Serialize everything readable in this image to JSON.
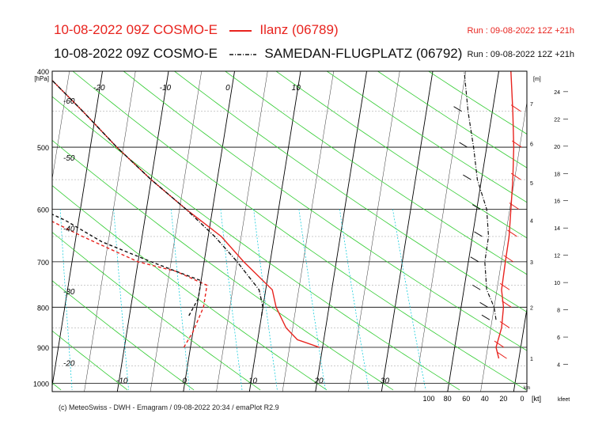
{
  "header": {
    "line1_text": "10-08-2022 09Z COSMO-E",
    "line1_station": "Ilanz (06789)",
    "line1_run": "Run : 09-08-2022 12Z +21h",
    "line2_text": "10-08-2022 09Z COSMO-E",
    "line2_station": "SAMEDAN-FLUGPLATZ (06792)",
    "line2_run": "Run : 09-08-2022 12Z +21h"
  },
  "footer": "(c) MeteoSwiss - DWH - Emagram / 09-08-2022  20:34 / emaPlot R2.9",
  "colors": {
    "ilanz": "#e8231e",
    "samedan": "#111111",
    "dry_adiabat": "#33cc33",
    "mixing_ratio": "#00c8d8"
  },
  "chart_data": {
    "type": "emagram",
    "y_axis": {
      "unit_label": "[hPa]",
      "ticks": [
        "400",
        "500",
        "600",
        "700",
        "800",
        "900",
        "1000"
      ],
      "range": [
        1025,
        400
      ],
      "scale": "log"
    },
    "temp_axis": {
      "ticks": [
        "-60",
        "-50",
        "-40",
        "-30",
        "-20",
        "-10",
        "0",
        "10",
        "20",
        "30"
      ],
      "range_at_1000hPa": [
        -60,
        40
      ]
    },
    "height_axis_m": {
      "label": "[m]",
      "ticks": [
        "1",
        "2",
        "3",
        "4",
        "5",
        "6",
        "7"
      ],
      "sub_label": "km"
    },
    "height_axis_kfeet": {
      "ticks": [
        "4",
        "6",
        "8",
        "10",
        "12",
        "14",
        "16",
        "18",
        "20",
        "22",
        "24"
      ],
      "label": "kfeet"
    },
    "wind_axis": {
      "ticks": [
        "100",
        "80",
        "60",
        "40",
        "20",
        "0"
      ],
      "unit": "[kt]"
    },
    "series": [
      {
        "name": "Ilanz (06789)",
        "temperature": [
          [
            900,
            19.5
          ],
          [
            880,
            16
          ],
          [
            850,
            14
          ],
          [
            800,
            12
          ],
          [
            760,
            11
          ],
          [
            700,
            6
          ],
          [
            650,
            2
          ],
          [
            600,
            -4
          ],
          [
            550,
            -10
          ],
          [
            500,
            -16
          ],
          [
            450,
            -22
          ],
          [
            400,
            -29
          ]
        ],
        "dewpoint": [
          [
            900,
            -1
          ],
          [
            860,
            0
          ],
          [
            800,
            1
          ],
          [
            750,
            1
          ],
          [
            720,
            -4
          ],
          [
            700,
            -10
          ],
          [
            650,
            -19
          ],
          [
            600,
            -28
          ],
          [
            560,
            -36
          ],
          [
            520,
            -37
          ],
          [
            480,
            -34
          ],
          [
            440,
            -32
          ],
          [
            400,
            -33
          ]
        ]
      },
      {
        "name": "SAMEDAN-FLUGPLATZ (06792)",
        "temperature": [
          [
            820,
            10
          ],
          [
            800,
            10
          ],
          [
            760,
            9
          ],
          [
            700,
            5
          ],
          [
            650,
            1
          ],
          [
            600,
            -4
          ],
          [
            550,
            -10
          ],
          [
            500,
            -16
          ],
          [
            450,
            -22
          ],
          [
            400,
            -29
          ]
        ],
        "dewpoint": [
          [
            820,
            -1
          ],
          [
            780,
            0
          ],
          [
            740,
            0
          ],
          [
            720,
            -4
          ],
          [
            700,
            -8
          ],
          [
            660,
            -16
          ],
          [
            620,
            -22
          ],
          [
            580,
            -30
          ],
          [
            550,
            -36
          ],
          [
            510,
            -37
          ],
          [
            470,
            -33
          ],
          [
            430,
            -28
          ],
          [
            400,
            -30
          ]
        ]
      }
    ],
    "annotations": [
      "-60",
      "-50",
      "-40",
      "-30",
      "-20",
      "-10",
      "0",
      "10",
      "20",
      "30",
      "-20",
      "-30",
      "-40",
      "-50",
      "-60",
      "10",
      "20",
      "30"
    ]
  }
}
